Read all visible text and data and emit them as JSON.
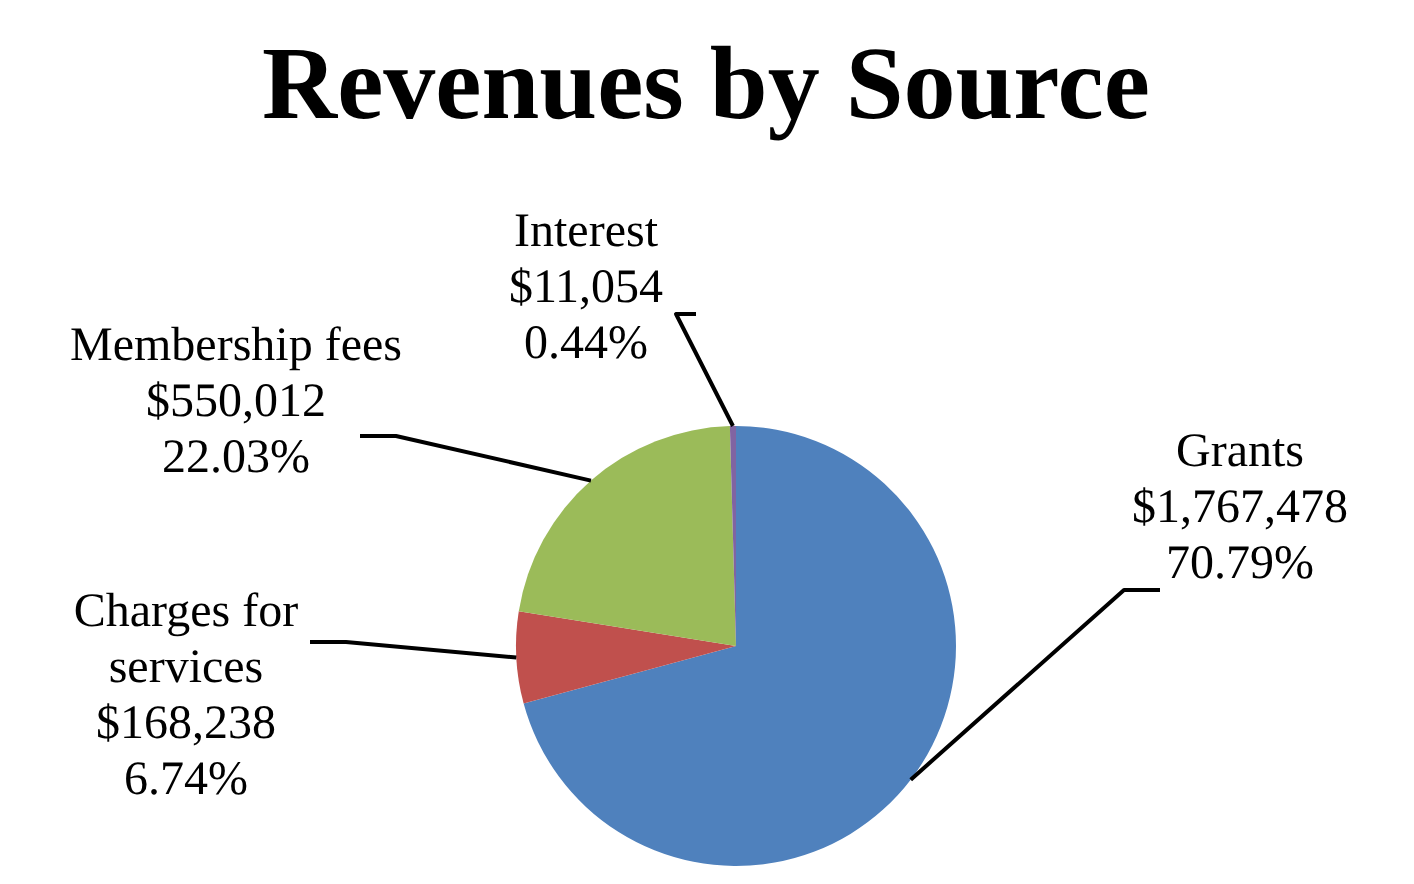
{
  "chart_data": {
    "type": "pie",
    "title": "Revenues by Source",
    "categories": [
      "Grants",
      "Charges for services",
      "Membership fees",
      "Interest"
    ],
    "values": [
      1767478,
      168238,
      550012,
      11054
    ],
    "colors": [
      "#4f81bd",
      "#c0504d",
      "#9bbb59",
      "#8064a2"
    ],
    "value_labels": [
      "$1,767,478\n70.79%",
      "$168,238\n6.74%",
      "$550,012\n22.03%",
      "$11,054\n0.44%"
    ]
  }
}
